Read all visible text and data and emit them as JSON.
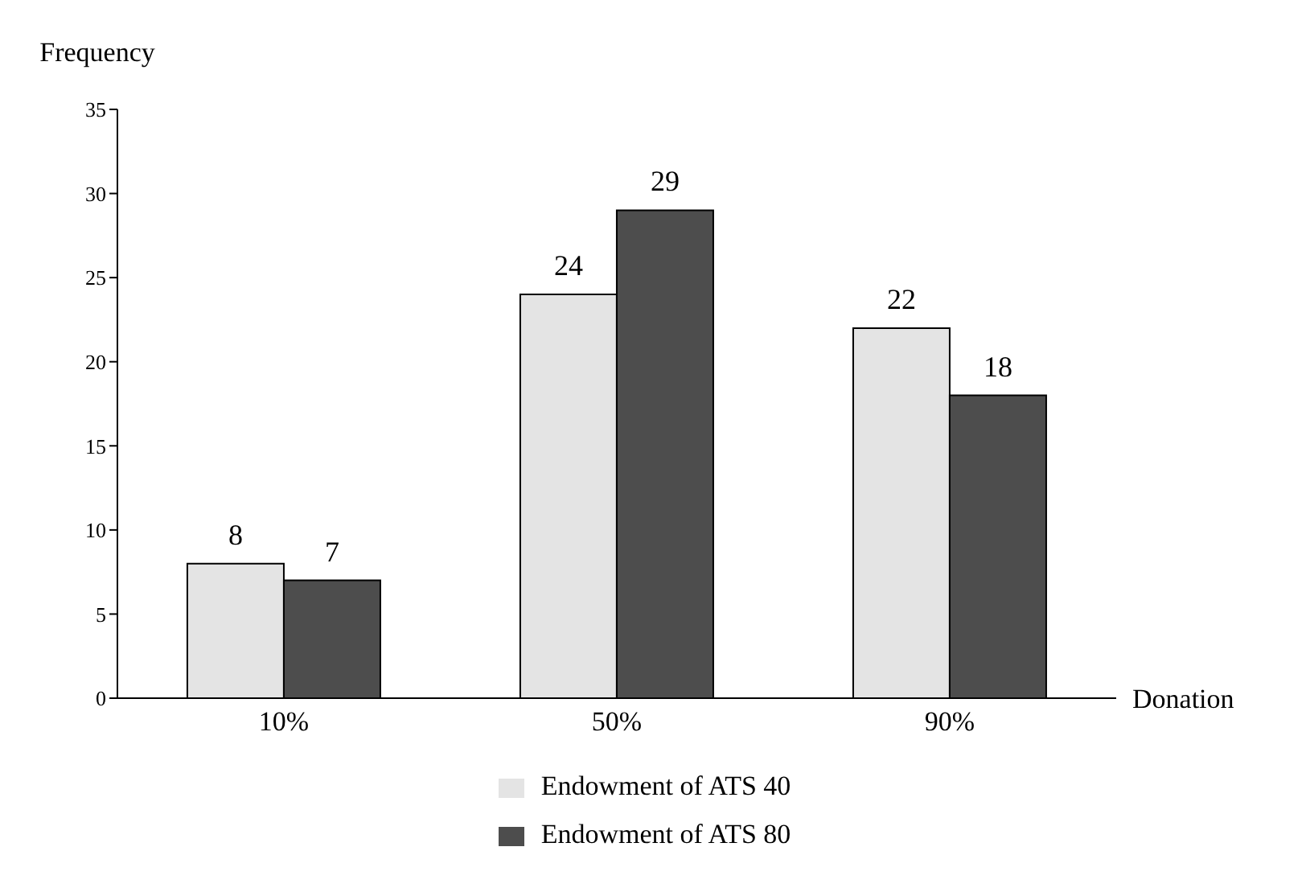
{
  "chart_data": {
    "type": "bar",
    "ylabel": "Frequency",
    "xlabel": "Donation",
    "categories": [
      "10%",
      "50%",
      "90%"
    ],
    "series": [
      {
        "name": "Endowment of ATS 40",
        "color": "#e4e4e4",
        "values": [
          8,
          24,
          22
        ]
      },
      {
        "name": "Endowment of ATS 80",
        "color": "#4d4d4d",
        "values": [
          7,
          29,
          18
        ]
      }
    ],
    "ylim": [
      0,
      35
    ],
    "yticks": [
      0,
      5,
      10,
      15,
      20,
      25,
      30,
      35
    ],
    "data_labels": true,
    "legend": "bottom",
    "grid": false
  }
}
